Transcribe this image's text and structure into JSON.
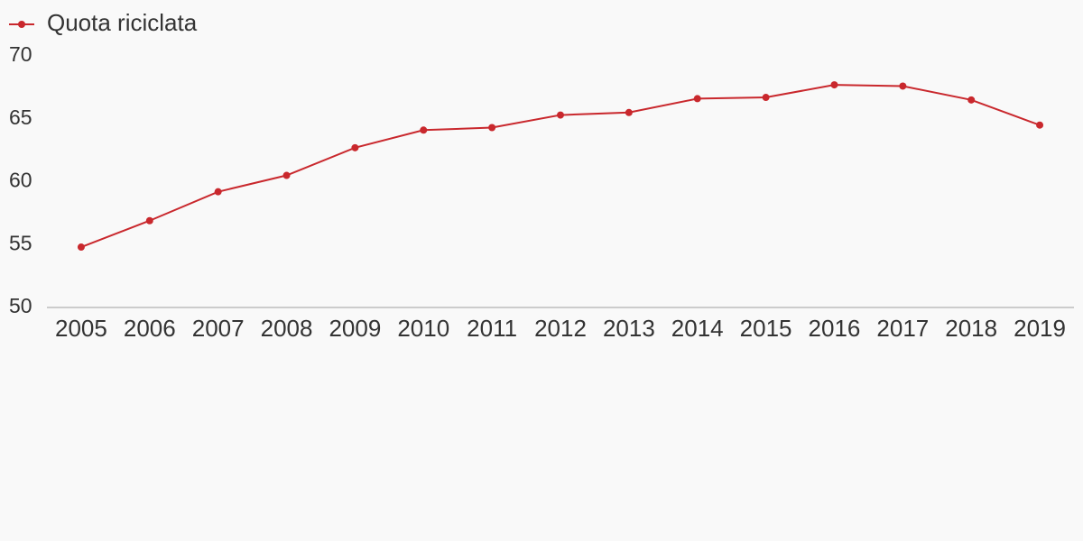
{
  "chart_data": {
    "type": "line",
    "categories": [
      "2005",
      "2006",
      "2007",
      "2008",
      "2009",
      "2010",
      "2011",
      "2012",
      "2013",
      "2014",
      "2015",
      "2016",
      "2017",
      "2018",
      "2019"
    ],
    "series": [
      {
        "name": "Quota riciclata",
        "color": "#c9282d",
        "values": [
          54.8,
          56.9,
          59.2,
          60.5,
          62.7,
          64.1,
          64.3,
          65.3,
          65.5,
          66.6,
          66.7,
          67.7,
          67.6,
          66.5,
          64.5
        ]
      }
    ],
    "ylim": [
      50,
      70
    ],
    "yticks": [
      50,
      55,
      60,
      65,
      70
    ],
    "grid": false,
    "legend": "top-left"
  }
}
